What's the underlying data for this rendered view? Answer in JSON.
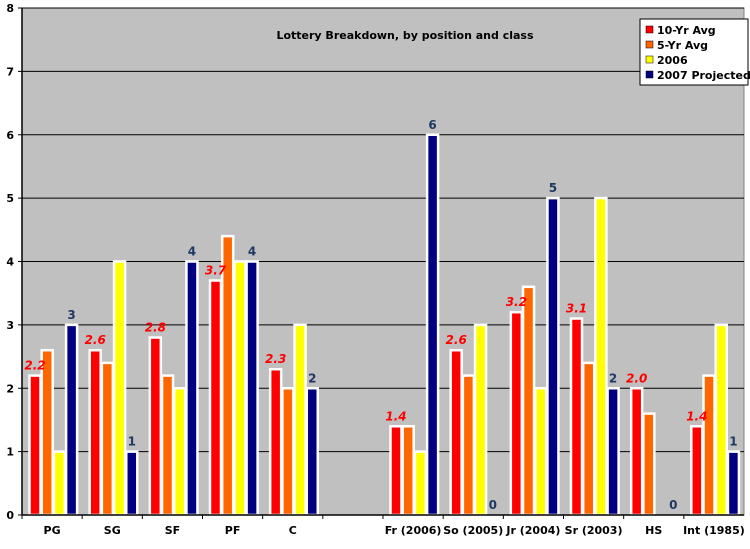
{
  "chart_data": {
    "type": "bar",
    "title": "Lottery Breakdown, by position and class",
    "categories": [
      "PG",
      "SG",
      "SF",
      "PF",
      "C",
      "",
      "Fr (2006)",
      "So (2005)",
      "Jr (2004)",
      "Sr (2003)",
      "HS",
      "Int (1985)"
    ],
    "ylim": [
      0,
      8
    ],
    "yticks": [
      0,
      1,
      2,
      3,
      4,
      5,
      6,
      7,
      8
    ],
    "grid": true,
    "legend_position": "top-right",
    "background_color": "#c0c0c0",
    "series": [
      {
        "name": "10-Yr Avg",
        "color": "#ff0000",
        "values": [
          2.2,
          2.6,
          2.8,
          3.7,
          2.3,
          null,
          1.4,
          2.6,
          3.2,
          3.1,
          2.0,
          1.4
        ],
        "value_labels": [
          "2.2",
          "2.6",
          "2.8",
          "3.7",
          "2.3",
          "",
          "1.4",
          "2.6",
          "3.2",
          "3.1",
          "2.0",
          "1.4"
        ]
      },
      {
        "name": "5-Yr Avg",
        "color": "#ff6600",
        "values": [
          2.6,
          2.4,
          2.2,
          4.4,
          2.0,
          null,
          1.4,
          2.2,
          3.6,
          2.4,
          1.6,
          2.2
        ]
      },
      {
        "name": "2006",
        "color": "#ffff00",
        "values": [
          1,
          4,
          2,
          4,
          3,
          null,
          1,
          3,
          2,
          5,
          0,
          3
        ]
      },
      {
        "name": "2007 Projected",
        "color": "#000080",
        "values": [
          3,
          1,
          4,
          4,
          2,
          null,
          6,
          0,
          5,
          2,
          0,
          1
        ],
        "value_labels": [
          "3",
          "1",
          "4",
          "4",
          "2",
          "",
          "6",
          "0",
          "5",
          "2",
          "0",
          "1"
        ]
      }
    ]
  }
}
